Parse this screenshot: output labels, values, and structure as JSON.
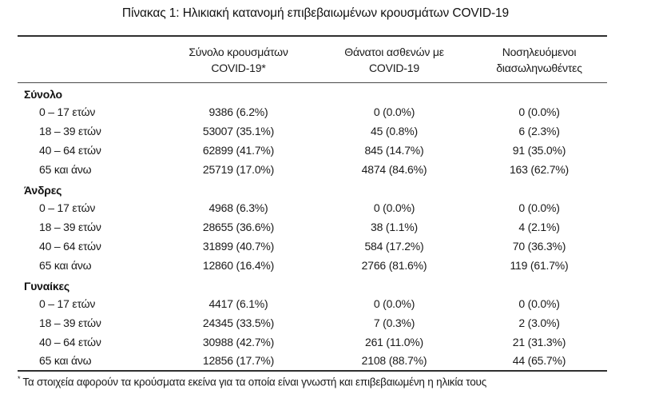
{
  "title": "Πίνακας 1: Ηλικιακή κατανομή επιβεβαιωμένων κρουσμάτων COVID-19",
  "table": {
    "columns": [
      {
        "line1": "",
        "line2": ""
      },
      {
        "line1": "Σύνολο κρουσμάτων",
        "line2": "COVID-19*"
      },
      {
        "line1": "Θάνατοι ασθενών με",
        "line2": "COVID-19"
      },
      {
        "line1": "Νοσηλευόμενοι",
        "line2": "διασωληνωθέντες"
      }
    ],
    "sections": [
      {
        "label": "Σύνολο",
        "rows": [
          {
            "age": "0 – 17 ετών",
            "cases": "9386 (6.2%)",
            "deaths": "0 (0.0%)",
            "intubated": "0 (0.0%)"
          },
          {
            "age": "18 – 39 ετών",
            "cases": "53007 (35.1%)",
            "deaths": "45 (0.8%)",
            "intubated": "6 (2.3%)"
          },
          {
            "age": "40 – 64 ετών",
            "cases": "62899 (41.7%)",
            "deaths": "845 (14.7%)",
            "intubated": "91 (35.0%)"
          },
          {
            "age": "65 και άνω",
            "cases": "25719 (17.0%)",
            "deaths": "4874 (84.6%)",
            "intubated": "163 (62.7%)"
          }
        ]
      },
      {
        "label": "Άνδρες",
        "rows": [
          {
            "age": "0 – 17 ετών",
            "cases": "4968 (6.3%)",
            "deaths": "0 (0.0%)",
            "intubated": "0 (0.0%)"
          },
          {
            "age": "18 – 39 ετών",
            "cases": "28655 (36.6%)",
            "deaths": "38 (1.1%)",
            "intubated": "4 (2.1%)"
          },
          {
            "age": "40 – 64 ετών",
            "cases": "31899 (40.7%)",
            "deaths": "584 (17.2%)",
            "intubated": "70 (36.3%)"
          },
          {
            "age": "65 και άνω",
            "cases": "12860 (16.4%)",
            "deaths": "2766 (81.6%)",
            "intubated": "119 (61.7%)"
          }
        ]
      },
      {
        "label": "Γυναίκες",
        "rows": [
          {
            "age": "0 – 17 ετών",
            "cases": "4417 (6.1%)",
            "deaths": "0 (0.0%)",
            "intubated": "0 (0.0%)"
          },
          {
            "age": "18 – 39 ετών",
            "cases": "24345 (33.5%)",
            "deaths": "7 (0.3%)",
            "intubated": "2 (3.0%)"
          },
          {
            "age": "40 – 64 ετών",
            "cases": "30988 (42.7%)",
            "deaths": "261 (11.0%)",
            "intubated": "21 (31.3%)"
          },
          {
            "age": "65 και άνω",
            "cases": "12856 (17.7%)",
            "deaths": "2108 (88.7%)",
            "intubated": "44 (65.7%)"
          }
        ]
      }
    ]
  },
  "footnote": {
    "marker": "*",
    "text": "Τα στοιχεία αφορούν τα κρούσματα εκείνα για τα οποία είναι γνωστή και επιβεβαιωμένη η ηλικία τους"
  },
  "colors": {
    "background": "#ffffff",
    "text": "#1a1a1a",
    "rule_heavy": "#2f2f2f",
    "rule_light": "#4a4a4a"
  }
}
